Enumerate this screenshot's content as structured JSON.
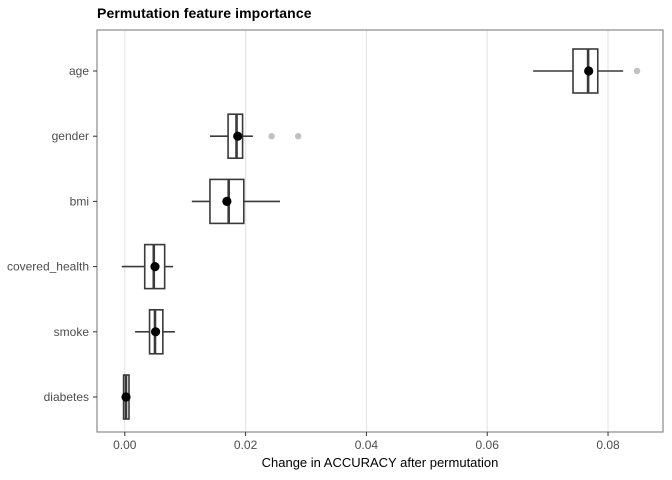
{
  "chart_data": {
    "type": "boxplot",
    "orientation": "horizontal",
    "title": "Permutation feature importance",
    "xlabel": "Change in ACCURACY after permutation",
    "ylabel": "",
    "xlim": [
      -0.0046,
      0.0891
    ],
    "x_ticks": [
      0.0,
      0.02,
      0.04,
      0.06,
      0.08
    ],
    "x_tick_labels": [
      "0.00",
      "0.02",
      "0.04",
      "0.06",
      "0.08"
    ],
    "grid": "vertical-major-only",
    "legend": "none",
    "categories": [
      "age",
      "gender",
      "bmi",
      "covered_health",
      "smoke",
      "diabetes"
    ],
    "series": [
      {
        "name": "age",
        "whisker_low": 0.0676,
        "q1": 0.0742,
        "median": 0.0767,
        "q3": 0.0783,
        "whisker_high": 0.0825,
        "mean": 0.0768,
        "outliers": [
          0.0848
        ]
      },
      {
        "name": "gender",
        "whisker_low": 0.0141,
        "q1": 0.0171,
        "median": 0.0185,
        "q3": 0.0195,
        "whisker_high": 0.0212,
        "mean": 0.0187,
        "outliers": [
          0.0243,
          0.0287
        ]
      },
      {
        "name": "bmi",
        "whisker_low": 0.0111,
        "q1": 0.0141,
        "median": 0.0172,
        "q3": 0.0197,
        "whisker_high": 0.0257,
        "mean": 0.0169,
        "outliers": []
      },
      {
        "name": "covered_health",
        "whisker_low": -0.0005,
        "q1": 0.0033,
        "median": 0.0048,
        "q3": 0.0066,
        "whisker_high": 0.008,
        "mean": 0.005,
        "outliers": []
      },
      {
        "name": "smoke",
        "whisker_low": 0.0017,
        "q1": 0.0041,
        "median": 0.005,
        "q3": 0.0063,
        "whisker_high": 0.0083,
        "mean": 0.0051,
        "outliers": []
      },
      {
        "name": "diabetes",
        "whisker_low": -0.0003,
        "q1": -0.0002,
        "median": 0.0002,
        "q3": 0.0007,
        "whisker_high": 0.0008,
        "mean": 0.0002,
        "outliers": []
      }
    ],
    "colors": {
      "box_border": "#3a3a3a",
      "median_line": "#3a3a3a",
      "whisker": "#3a3a3a",
      "mean_point": "#000000",
      "outlier_point": "#c0c0c0",
      "gridline": "#e2e2e2",
      "panel_border": "#8a8a8a",
      "tick_mark": "#333333",
      "tick_label": "#4d4d4d",
      "panel_background": "#ffffff"
    }
  }
}
